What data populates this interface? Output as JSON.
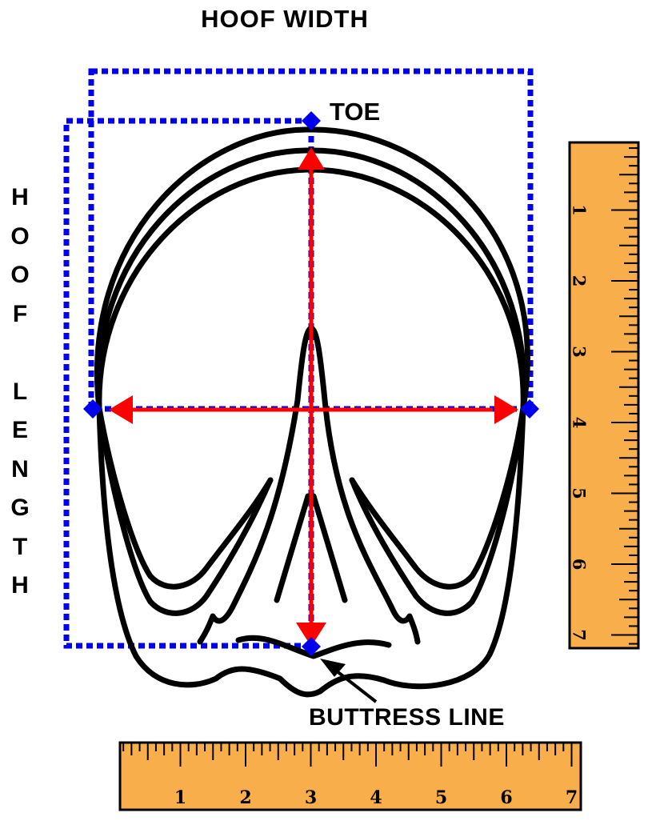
{
  "labels": {
    "hoof_width": "HOOF WIDTH",
    "hoof_length": "HOOF LENGTH",
    "toe": "TOE",
    "buttress_line": "BUTTRESS LINE"
  },
  "rulers": {
    "vertical": {
      "numbers": [
        "1",
        "2",
        "3",
        "4",
        "5",
        "6",
        "7"
      ]
    },
    "horizontal": {
      "numbers": [
        "1",
        "2",
        "3",
        "4",
        "5",
        "6",
        "7"
      ]
    }
  },
  "colors": {
    "outline": "#000000",
    "measure_arrow": "#ff0000",
    "bounding_box": "#0000ee",
    "marker": "#0000ee",
    "ruler_fill": "#f8ae4a",
    "background": "#ffffff"
  }
}
